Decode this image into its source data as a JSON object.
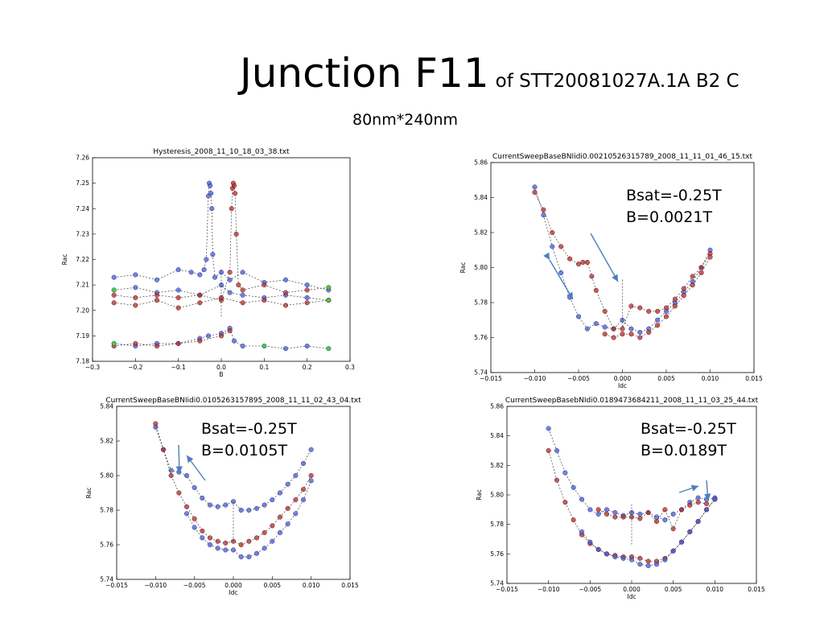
{
  "slide": {
    "title": "Junction F11",
    "title_suffix": "of STT20081027A.1A B2 C",
    "subtitle": "80nm*240nm"
  },
  "colors": {
    "blue_points": "#4d5fcc",
    "blue_points_dark": "#1a2a9a",
    "red_points": "#b03030",
    "green_points": "#3fd03f",
    "annotation_arrow": "#4a7fbf"
  },
  "notes": [
    {
      "lines": [
        "Bsat=-0.25T",
        "B=0.0021T"
      ]
    },
    {
      "lines": [
        "Bsat=-0.25T",
        "B=0.0105T"
      ]
    },
    {
      "lines": [
        "Bsat=-0.25T",
        "B=0.0189T"
      ]
    }
  ],
  "chart_data": [
    {
      "type": "scatter",
      "title": "Hysteresis_2008_11_10_18_03_38.txt",
      "xlabel": "B",
      "ylabel": "Rac",
      "xlim": [
        -0.3,
        0.3
      ],
      "ylim": [
        7.18,
        7.26
      ],
      "xticks": [
        -0.3,
        -0.2,
        -0.1,
        0.0,
        0.1,
        0.2,
        0.3
      ],
      "yticks": [
        7.18,
        7.19,
        7.2,
        7.21,
        7.22,
        7.23,
        7.24,
        7.25,
        7.26
      ],
      "grid": false,
      "series": [
        {
          "color": "blue",
          "x": [
            -0.25,
            -0.2,
            -0.15,
            -0.1,
            -0.07,
            -0.05,
            -0.04,
            -0.035,
            -0.03,
            -0.028,
            -0.026,
            -0.024,
            -0.022,
            -0.02,
            -0.015,
            0.0,
            0.02,
            0.05,
            0.1,
            0.15,
            0.2,
            0.25
          ],
          "y": [
            7.213,
            7.214,
            7.212,
            7.216,
            7.215,
            7.214,
            7.216,
            7.22,
            7.245,
            7.25,
            7.249,
            7.246,
            7.24,
            7.222,
            7.213,
            7.215,
            7.212,
            7.215,
            7.211,
            7.212,
            7.21,
            7.208
          ]
        },
        {
          "color": "blue",
          "x": [
            -0.25,
            -0.2,
            -0.15,
            -0.1,
            -0.05,
            0.0,
            0.02,
            0.05,
            0.1,
            0.15,
            0.2,
            0.25
          ],
          "y": [
            7.208,
            7.209,
            7.207,
            7.208,
            7.206,
            7.21,
            7.207,
            7.206,
            7.205,
            7.206,
            7.205,
            7.204
          ]
        },
        {
          "color": "blue",
          "x": [
            -0.25,
            -0.2,
            -0.15,
            -0.1,
            -0.05,
            -0.03,
            0.0,
            0.02,
            0.03,
            0.05,
            0.1,
            0.15,
            0.2,
            0.25
          ],
          "y": [
            7.187,
            7.186,
            7.187,
            7.187,
            7.189,
            7.19,
            7.191,
            7.193,
            7.188,
            7.186,
            7.186,
            7.185,
            7.186,
            7.185
          ]
        },
        {
          "color": "red",
          "x": [
            -0.25,
            -0.2,
            -0.15,
            -0.1,
            -0.05,
            0.0,
            0.02,
            0.024,
            0.026,
            0.028,
            0.03,
            0.032,
            0.035,
            0.04,
            0.05,
            0.1,
            0.15,
            0.2,
            0.25
          ],
          "y": [
            7.206,
            7.205,
            7.206,
            7.205,
            7.206,
            7.204,
            7.215,
            7.24,
            7.248,
            7.25,
            7.249,
            7.246,
            7.23,
            7.21,
            7.208,
            7.21,
            7.207,
            7.208,
            7.209
          ]
        },
        {
          "color": "red",
          "x": [
            -0.25,
            -0.2,
            -0.15,
            -0.1,
            -0.05,
            0.0,
            0.05,
            0.1,
            0.15,
            0.2,
            0.25
          ],
          "y": [
            7.203,
            7.202,
            7.204,
            7.201,
            7.203,
            7.205,
            7.203,
            7.204,
            7.202,
            7.203,
            7.204
          ]
        },
        {
          "color": "red",
          "x": [
            -0.25,
            -0.2,
            -0.15,
            -0.1,
            -0.05,
            0.0,
            0.02
          ],
          "y": [
            7.186,
            7.187,
            7.186,
            7.187,
            7.188,
            7.19,
            7.192
          ]
        }
      ]
    },
    {
      "type": "scatter",
      "title": "CurrentSweepBaseBNIidi0.00210526315789_2008_11_11_01_46_15.txt",
      "xlabel": "Idc",
      "ylabel": "Rac",
      "xlim": [
        -0.015,
        0.015
      ],
      "ylim": [
        5.74,
        5.86
      ],
      "xticks": [
        -0.015,
        -0.01,
        -0.005,
        0.0,
        0.005,
        0.01,
        0.015
      ],
      "yticks": [
        5.74,
        5.76,
        5.78,
        5.8,
        5.82,
        5.84,
        5.86
      ],
      "grid": false,
      "series": [
        {
          "color": "blue",
          "x": [
            -0.01,
            -0.009,
            -0.008,
            -0.007,
            -0.006,
            -0.005,
            -0.004,
            -0.003,
            -0.002,
            -0.001,
            0.0,
            0.001,
            0.002,
            0.003,
            0.004,
            0.005,
            0.006,
            0.007,
            0.008,
            0.009,
            0.01
          ],
          "y": [
            5.846,
            5.83,
            5.812,
            5.797,
            5.783,
            5.772,
            5.765,
            5.768,
            5.766,
            5.765,
            5.77,
            5.765,
            5.763,
            5.765,
            5.77,
            5.775,
            5.78,
            5.786,
            5.792,
            5.8,
            5.81
          ]
        },
        {
          "color": "red",
          "x": [
            -0.01,
            -0.009,
            -0.008,
            -0.007,
            -0.006,
            -0.005,
            -0.0045,
            -0.004,
            -0.0035,
            -0.003,
            -0.002,
            -0.001,
            0.0,
            0.001,
            0.002,
            0.003,
            0.004,
            0.005,
            0.006,
            0.007,
            0.008,
            0.009,
            0.01
          ],
          "y": [
            5.843,
            5.833,
            5.82,
            5.812,
            5.805,
            5.802,
            5.803,
            5.803,
            5.795,
            5.787,
            5.775,
            5.765,
            5.765,
            5.778,
            5.777,
            5.775,
            5.775,
            5.777,
            5.782,
            5.788,
            5.795,
            5.8,
            5.808
          ]
        },
        {
          "color": "red",
          "x": [
            -0.002,
            -0.001,
            0.0,
            0.001,
            0.002,
            0.003,
            0.004,
            0.005,
            0.006,
            0.007,
            0.008,
            0.009,
            0.01
          ],
          "y": [
            5.762,
            5.76,
            5.762,
            5.762,
            5.76,
            5.763,
            5.767,
            5.772,
            5.778,
            5.784,
            5.79,
            5.797,
            5.806
          ]
        }
      ]
    },
    {
      "type": "scatter",
      "title": "CurrentSweepBaseBNIidi0.0105263157895_2008_11_11_02_43_04.txt",
      "xlabel": "Idc",
      "ylabel": "Rac",
      "xlim": [
        -0.015,
        0.015
      ],
      "ylim": [
        5.74,
        5.84
      ],
      "xticks": [
        -0.015,
        -0.01,
        -0.005,
        0.0,
        0.005,
        0.01,
        0.015
      ],
      "yticks": [
        5.74,
        5.76,
        5.78,
        5.8,
        5.82,
        5.84
      ],
      "grid": false,
      "series": [
        {
          "color": "blue",
          "x": [
            -0.01,
            -0.009,
            -0.008,
            -0.007,
            -0.006,
            -0.005,
            -0.004,
            -0.003,
            -0.002,
            -0.001,
            0.0,
            0.001,
            0.002,
            0.003,
            0.004,
            0.005,
            0.006,
            0.007,
            0.008,
            0.009,
            0.01
          ],
          "y": [
            5.828,
            5.815,
            5.803,
            5.802,
            5.8,
            5.793,
            5.787,
            5.783,
            5.782,
            5.783,
            5.785,
            5.78,
            5.78,
            5.781,
            5.783,
            5.786,
            5.79,
            5.795,
            5.8,
            5.807,
            5.815
          ]
        },
        {
          "color": "red",
          "x": [
            -0.01,
            -0.009,
            -0.008,
            -0.007,
            -0.006,
            -0.005,
            -0.004,
            -0.003,
            -0.002,
            -0.001,
            0.0,
            0.001,
            0.002,
            0.003,
            0.004,
            0.005,
            0.006,
            0.007,
            0.008,
            0.009,
            0.01
          ],
          "y": [
            5.83,
            5.815,
            5.8,
            5.79,
            5.782,
            5.775,
            5.768,
            5.764,
            5.762,
            5.761,
            5.762,
            5.76,
            5.762,
            5.764,
            5.767,
            5.771,
            5.776,
            5.781,
            5.786,
            5.792,
            5.8
          ]
        },
        {
          "color": "blue",
          "x": [
            -0.006,
            -0.005,
            -0.004,
            -0.003,
            -0.002,
            -0.001,
            0.0,
            0.001,
            0.002,
            0.003,
            0.004,
            0.005,
            0.006,
            0.007,
            0.008,
            0.009,
            0.01
          ],
          "y": [
            5.778,
            5.77,
            5.764,
            5.76,
            5.758,
            5.757,
            5.757,
            5.753,
            5.753,
            5.755,
            5.758,
            5.762,
            5.767,
            5.772,
            5.778,
            5.786,
            5.797
          ]
        }
      ]
    },
    {
      "type": "scatter",
      "title": "CurrentSweepBasebNIdi0.0189473684211_2008_11_11_03_25_44.txt",
      "xlabel": "Idc",
      "ylabel": "Rac",
      "xlim": [
        -0.015,
        0.015
      ],
      "ylim": [
        5.74,
        5.86
      ],
      "xticks": [
        -0.015,
        -0.01,
        -0.005,
        0.0,
        0.005,
        0.01,
        0.015
      ],
      "yticks": [
        5.74,
        5.76,
        5.78,
        5.8,
        5.82,
        5.84,
        5.86
      ],
      "grid": false,
      "series": [
        {
          "color": "blue",
          "x": [
            -0.01,
            -0.009,
            -0.008,
            -0.007,
            -0.006,
            -0.005,
            -0.004,
            -0.003,
            -0.002,
            -0.001,
            0.0,
            0.001,
            0.002,
            0.003,
            0.004,
            0.005,
            0.006,
            0.007,
            0.008,
            0.009,
            0.01
          ],
          "y": [
            5.845,
            5.83,
            5.815,
            5.805,
            5.797,
            5.79,
            5.787,
            5.79,
            5.788,
            5.786,
            5.788,
            5.787,
            5.788,
            5.785,
            5.783,
            5.787,
            5.79,
            5.795,
            5.798,
            5.797,
            5.798
          ]
        },
        {
          "color": "red",
          "x": [
            -0.01,
            -0.009,
            -0.008,
            -0.007,
            -0.006,
            -0.005,
            -0.004,
            -0.003,
            -0.002,
            -0.001,
            0.0,
            0.001,
            0.002,
            0.003,
            0.004,
            0.005,
            0.006,
            0.007,
            0.008,
            0.009,
            0.01
          ],
          "y": [
            5.83,
            5.81,
            5.795,
            5.783,
            5.773,
            5.767,
            5.763,
            5.76,
            5.759,
            5.758,
            5.758,
            5.757,
            5.755,
            5.755,
            5.757,
            5.762,
            5.768,
            5.775,
            5.782,
            5.79,
            5.797
          ]
        },
        {
          "color": "red",
          "x": [
            -0.004,
            -0.003,
            -0.002,
            -0.001,
            0.0,
            0.001,
            0.002,
            0.003,
            0.004,
            0.005,
            0.006,
            0.007,
            0.008,
            0.009
          ],
          "y": [
            5.79,
            5.787,
            5.785,
            5.785,
            5.785,
            5.784,
            5.788,
            5.782,
            5.79,
            5.777,
            5.79,
            5.793,
            5.795,
            5.794
          ]
        },
        {
          "color": "blue",
          "x": [
            -0.006,
            -0.005,
            -0.004,
            -0.003,
            -0.002,
            -0.001,
            0.0,
            0.001,
            0.002,
            0.003,
            0.004,
            0.005,
            0.006,
            0.007,
            0.008,
            0.009,
            0.01
          ],
          "y": [
            5.775,
            5.768,
            5.763,
            5.76,
            5.758,
            5.757,
            5.756,
            5.753,
            5.752,
            5.753,
            5.756,
            5.762,
            5.768,
            5.775,
            5.782,
            5.79,
            5.797
          ]
        }
      ]
    }
  ]
}
